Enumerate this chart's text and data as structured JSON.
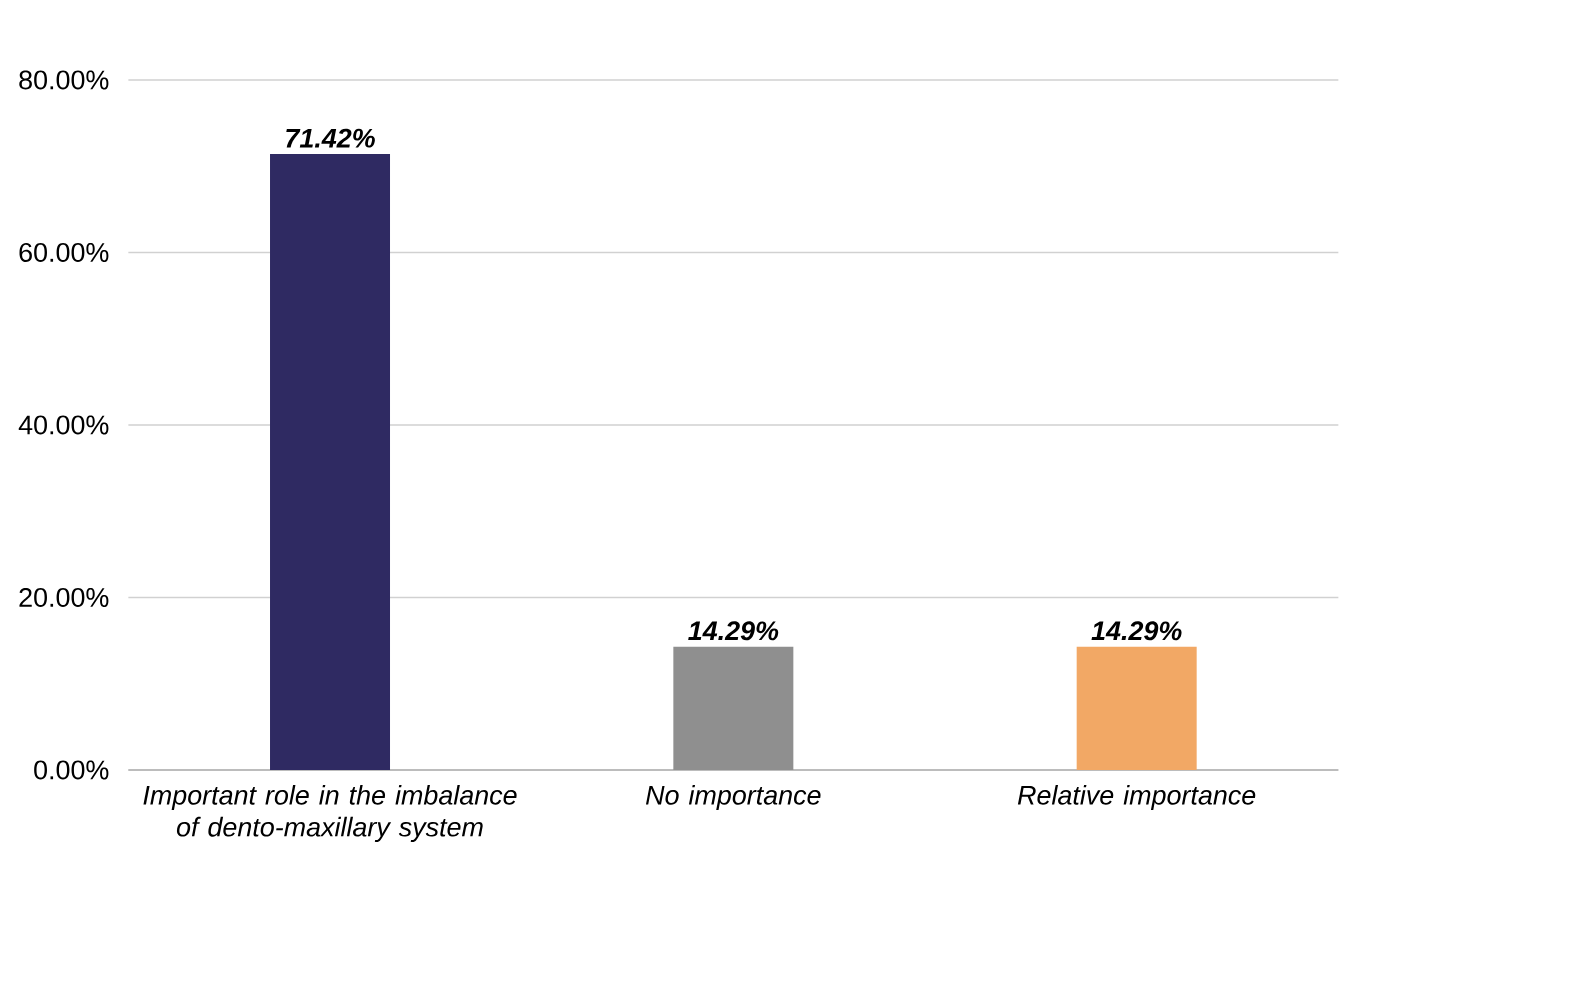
{
  "chart_data": {
    "type": "bar",
    "categories": [
      "Important role in the imbalance of dento-maxillary system",
      "No importance",
      "Relative importance"
    ],
    "values": [
      71.42,
      14.29,
      14.29
    ],
    "colors": [
      "#2f2a62",
      "#8f8f8f",
      "#f2a865"
    ],
    "value_labels": [
      "71.42%",
      "14.29%",
      "14.29%"
    ],
    "ylim": [
      0,
      80
    ],
    "yticks": [
      {
        "value": 0,
        "label": "0.00%"
      },
      {
        "value": 20,
        "label": "20.00%"
      },
      {
        "value": 40,
        "label": "40.00%"
      },
      {
        "value": 60,
        "label": "60.00%"
      },
      {
        "value": 80,
        "label": "80.00%"
      }
    ],
    "grid": "y"
  }
}
